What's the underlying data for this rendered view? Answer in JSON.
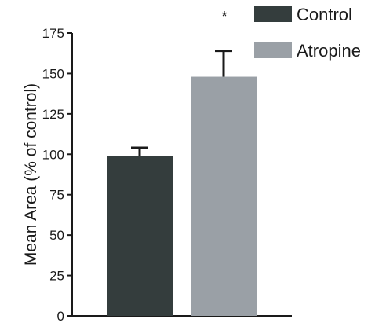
{
  "chart_data": {
    "type": "bar",
    "title": "",
    "ylabel": "Mean Area (% of control)",
    "xlabel": "",
    "ylim": [
      0,
      175
    ],
    "yticks": [
      0,
      25,
      50,
      75,
      100,
      125,
      150,
      175
    ],
    "ytick_labels": [
      "0",
      "25",
      "50",
      "75",
      "100",
      "125",
      "150",
      "175"
    ],
    "grid": false,
    "legend_position": "top-right",
    "categories": [
      "Control",
      "Atropine"
    ],
    "values": [
      99,
      148
    ],
    "errors": [
      5,
      16
    ],
    "colors": [
      "#343d3d",
      "#9aa0a6"
    ],
    "legend": [
      {
        "label": "Control",
        "color": "#343d3d"
      },
      {
        "label": "Atropine",
        "color": "#9aa0a6"
      }
    ],
    "annotations": [
      {
        "text": "*",
        "target": "Atropine"
      }
    ]
  }
}
